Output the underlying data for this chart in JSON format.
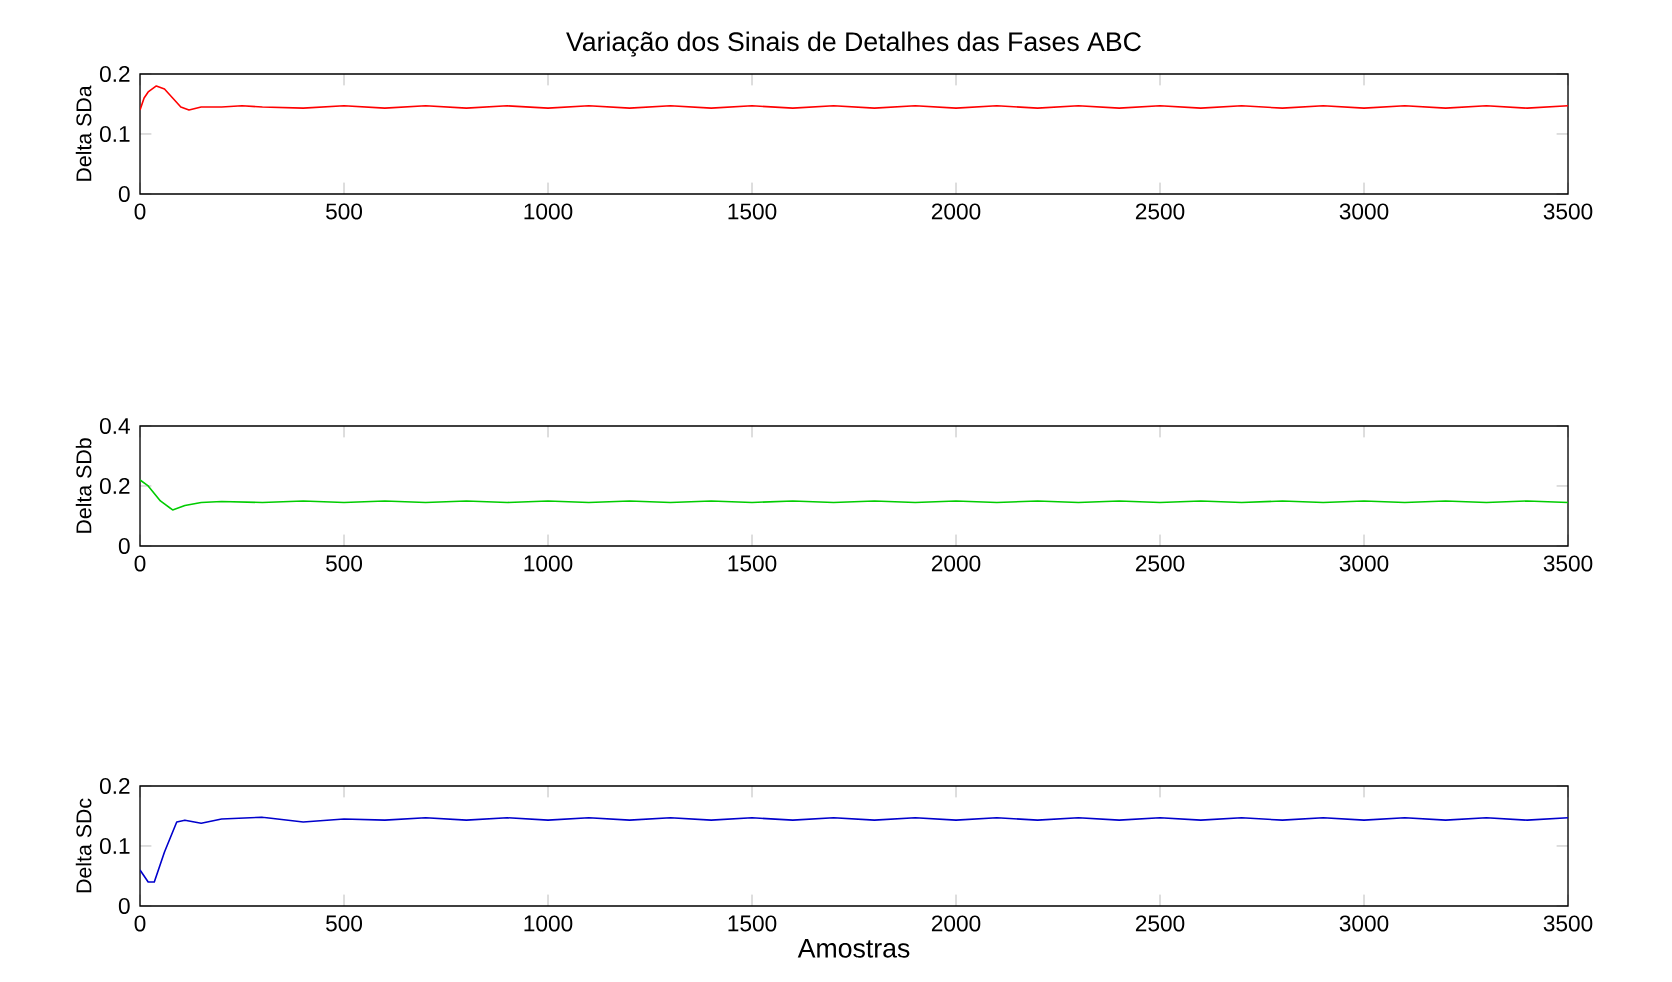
{
  "chart_data": [
    {
      "type": "line",
      "title": "Variação dos Sinais de Detalhes das Fases ABC",
      "ylabel": "Delta SDa",
      "xlim": [
        0,
        3500
      ],
      "ylim": [
        0,
        0.2
      ],
      "xticks": [
        0,
        500,
        1000,
        1500,
        2000,
        2500,
        3000,
        3500
      ],
      "yticks": [
        0,
        0.1,
        0.2
      ],
      "series": [
        {
          "color": "#ff0000",
          "x": [
            0,
            10,
            20,
            40,
            60,
            80,
            100,
            120,
            150,
            200,
            250,
            300,
            400,
            500,
            600,
            700,
            800,
            900,
            1000,
            1100,
            1200,
            1300,
            1400,
            1500,
            1600,
            1700,
            1800,
            1900,
            2000,
            2100,
            2200,
            2300,
            2400,
            2500,
            2600,
            2700,
            2800,
            2900,
            3000,
            3100,
            3200,
            3300,
            3400,
            3500
          ],
          "values": [
            0.14,
            0.16,
            0.17,
            0.18,
            0.175,
            0.16,
            0.145,
            0.14,
            0.145,
            0.145,
            0.147,
            0.145,
            0.143,
            0.147,
            0.143,
            0.147,
            0.143,
            0.147,
            0.143,
            0.147,
            0.143,
            0.147,
            0.143,
            0.147,
            0.143,
            0.147,
            0.143,
            0.147,
            0.143,
            0.147,
            0.143,
            0.147,
            0.143,
            0.147,
            0.143,
            0.147,
            0.143,
            0.147,
            0.143,
            0.147,
            0.143,
            0.147,
            0.143,
            0.147
          ]
        }
      ]
    },
    {
      "type": "line",
      "ylabel": "Delta SDb",
      "xlim": [
        0,
        3500
      ],
      "ylim": [
        0,
        0.4
      ],
      "xticks": [
        0,
        500,
        1000,
        1500,
        2000,
        2500,
        3000,
        3500
      ],
      "yticks": [
        0,
        0.2,
        0.4
      ],
      "series": [
        {
          "color": "#00cc00",
          "x": [
            0,
            20,
            50,
            80,
            110,
            150,
            200,
            300,
            400,
            500,
            600,
            700,
            800,
            900,
            1000,
            1100,
            1200,
            1300,
            1400,
            1500,
            1600,
            1700,
            1800,
            1900,
            2000,
            2100,
            2200,
            2300,
            2400,
            2500,
            2600,
            2700,
            2800,
            2900,
            3000,
            3100,
            3200,
            3300,
            3400,
            3500
          ],
          "values": [
            0.22,
            0.2,
            0.15,
            0.12,
            0.135,
            0.145,
            0.148,
            0.145,
            0.15,
            0.145,
            0.15,
            0.145,
            0.15,
            0.145,
            0.15,
            0.145,
            0.15,
            0.145,
            0.15,
            0.145,
            0.15,
            0.145,
            0.15,
            0.145,
            0.15,
            0.145,
            0.15,
            0.145,
            0.15,
            0.145,
            0.15,
            0.145,
            0.15,
            0.145,
            0.15,
            0.145,
            0.15,
            0.145,
            0.15,
            0.145
          ]
        }
      ]
    },
    {
      "type": "line",
      "ylabel": "Delta SDc",
      "xlabel": "Amostras",
      "xlim": [
        0,
        3500
      ],
      "ylim": [
        0,
        0.2
      ],
      "xticks": [
        0,
        500,
        1000,
        1500,
        2000,
        2500,
        3000,
        3500
      ],
      "yticks": [
        0,
        0.1,
        0.2
      ],
      "series": [
        {
          "color": "#0000cc",
          "x": [
            0,
            20,
            35,
            60,
            90,
            110,
            150,
            200,
            300,
            400,
            500,
            600,
            700,
            800,
            900,
            1000,
            1100,
            1200,
            1300,
            1400,
            1500,
            1600,
            1700,
            1800,
            1900,
            2000,
            2100,
            2200,
            2300,
            2400,
            2500,
            2600,
            2700,
            2800,
            2900,
            3000,
            3100,
            3200,
            3300,
            3400,
            3500
          ],
          "values": [
            0.06,
            0.04,
            0.04,
            0.09,
            0.14,
            0.143,
            0.138,
            0.145,
            0.148,
            0.14,
            0.145,
            0.143,
            0.147,
            0.143,
            0.147,
            0.143,
            0.147,
            0.143,
            0.147,
            0.143,
            0.147,
            0.143,
            0.147,
            0.143,
            0.147,
            0.143,
            0.147,
            0.143,
            0.147,
            0.143,
            0.147,
            0.143,
            0.147,
            0.143,
            0.147,
            0.143,
            0.147,
            0.143,
            0.147,
            0.143,
            0.147
          ]
        }
      ]
    }
  ]
}
